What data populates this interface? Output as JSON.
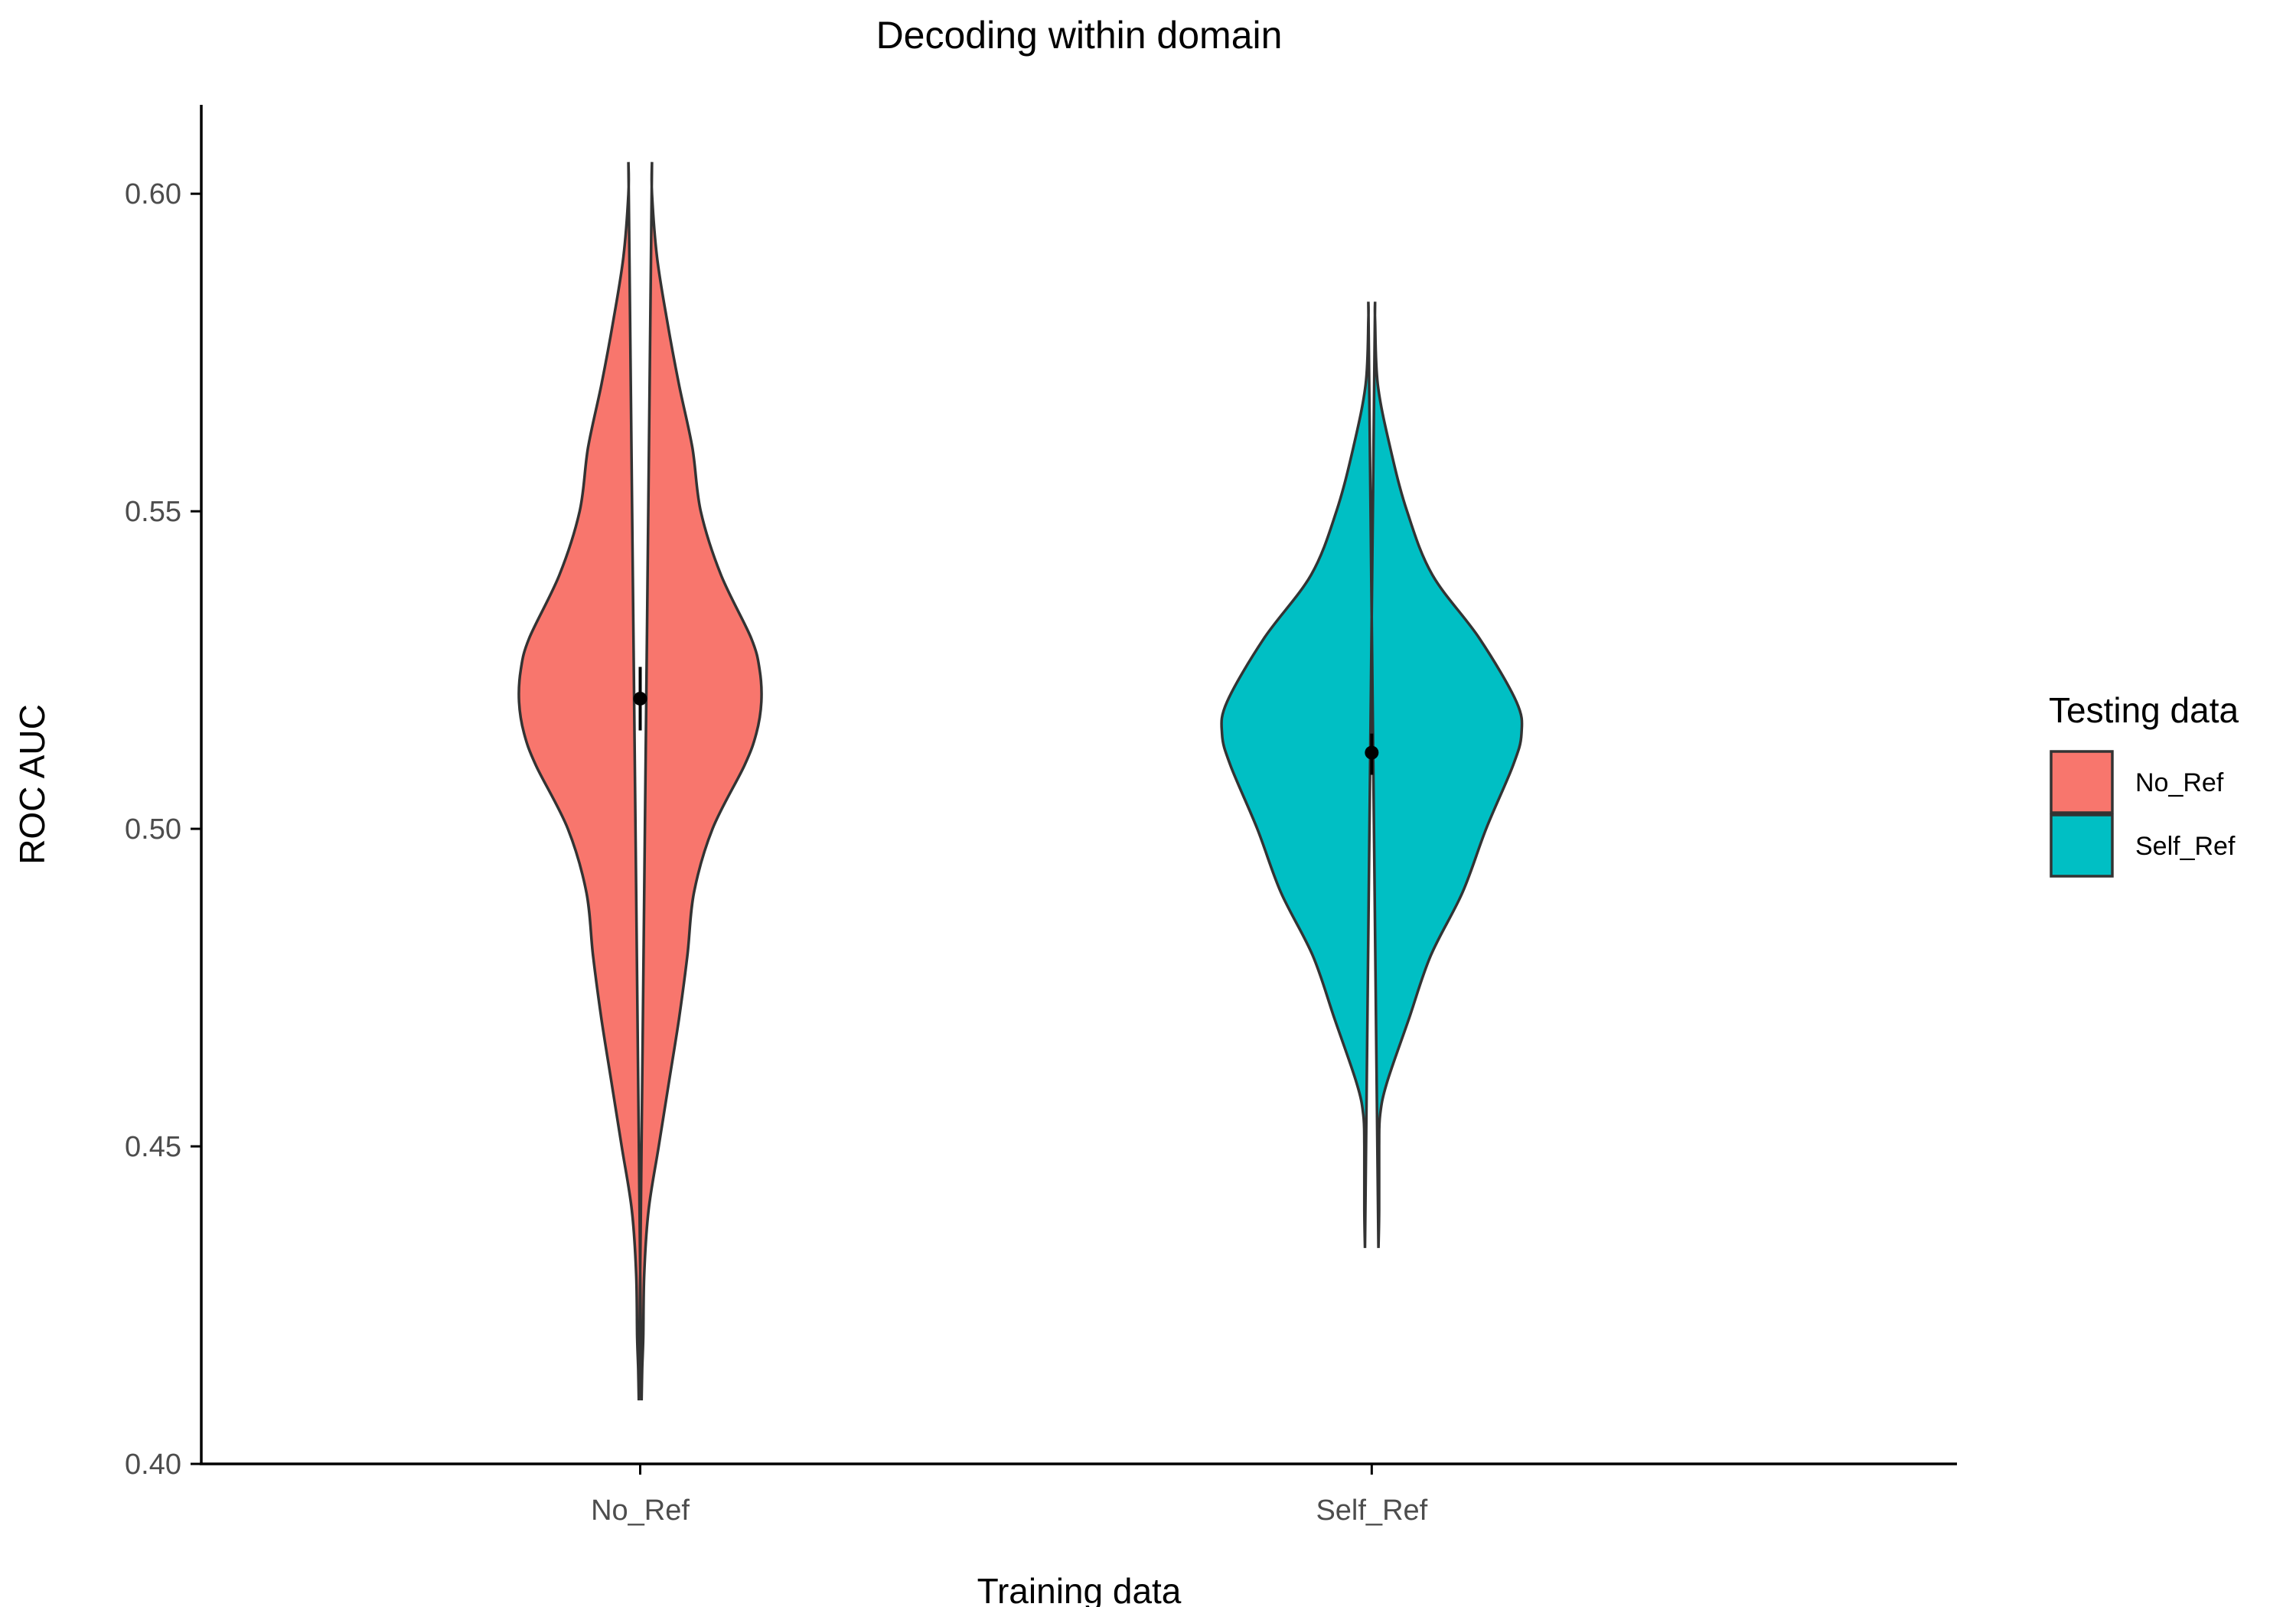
{
  "chart_data": {
    "type": "violin",
    "title": "Decoding within domain",
    "xlabel": "Training data",
    "ylabel": "ROC AUC",
    "categories": [
      "No_Ref",
      "Self_Ref"
    ],
    "ylim": [
      0.4,
      0.614
    ],
    "yticks": [
      "0.40",
      "0.45",
      "0.50",
      "0.55",
      "0.60"
    ],
    "ytick_values": [
      0.4,
      0.45,
      0.5,
      0.55,
      0.6
    ],
    "grid": false,
    "legend": {
      "title": "Testing data",
      "position": "right",
      "entries": [
        {
          "label": "No_Ref",
          "color": "#F8766D"
        },
        {
          "label": "Self_Ref",
          "color": "#00BFC4"
        }
      ]
    },
    "series": [
      {
        "name": "No_Ref",
        "category": "No_Ref",
        "color": "#F8766D",
        "range": [
          0.41,
          0.605
        ],
        "mean": 0.5205,
        "error": [
          0.5155,
          0.5255
        ],
        "density": [
          [
            0.41,
            0.004
          ],
          [
            0.415,
            0.006
          ],
          [
            0.42,
            0.009
          ],
          [
            0.43,
            0.012
          ],
          [
            0.44,
            0.025
          ],
          [
            0.45,
            0.055
          ],
          [
            0.46,
            0.085
          ],
          [
            0.47,
            0.115
          ],
          [
            0.48,
            0.14
          ],
          [
            0.49,
            0.16
          ],
          [
            0.5,
            0.215
          ],
          [
            0.51,
            0.31
          ],
          [
            0.515,
            0.345
          ],
          [
            0.52,
            0.36
          ],
          [
            0.525,
            0.355
          ],
          [
            0.53,
            0.33
          ],
          [
            0.54,
            0.24
          ],
          [
            0.55,
            0.18
          ],
          [
            0.56,
            0.155
          ],
          [
            0.57,
            0.115
          ],
          [
            0.58,
            0.08
          ],
          [
            0.59,
            0.05
          ],
          [
            0.6,
            0.035
          ],
          [
            0.605,
            0.035
          ]
        ]
      },
      {
        "name": "Self_Ref",
        "category": "Self_Ref",
        "color": "#00BFC4",
        "range": [
          0.434,
          0.583
        ],
        "mean": 0.512,
        "error": [
          0.5085,
          0.515
        ],
        "density": [
          [
            0.434,
            0.02
          ],
          [
            0.44,
            0.022
          ],
          [
            0.45,
            0.022
          ],
          [
            0.455,
            0.025
          ],
          [
            0.46,
            0.045
          ],
          [
            0.47,
            0.11
          ],
          [
            0.48,
            0.175
          ],
          [
            0.49,
            0.27
          ],
          [
            0.5,
            0.34
          ],
          [
            0.51,
            0.42
          ],
          [
            0.515,
            0.445
          ],
          [
            0.52,
            0.43
          ],
          [
            0.53,
            0.32
          ],
          [
            0.54,
            0.18
          ],
          [
            0.55,
            0.105
          ],
          [
            0.56,
            0.055
          ],
          [
            0.57,
            0.018
          ],
          [
            0.58,
            0.01
          ],
          [
            0.583,
            0.01
          ]
        ]
      }
    ]
  }
}
